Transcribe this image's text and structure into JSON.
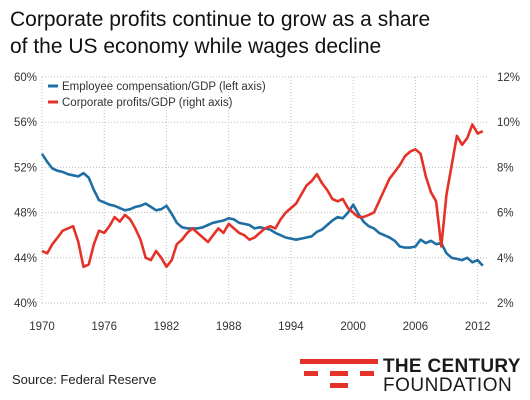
{
  "title": {
    "line1": "Corporate profits continue to grow as a share",
    "line2": "of the US economy while wages decline"
  },
  "source": "Source: Federal Reserve",
  "logo": {
    "line1": "THE CENTURY",
    "line2": "FOUNDATION"
  },
  "colors": {
    "compensation": "#1f6fa3",
    "profits": "#e53228",
    "grid": "#bdbdbd",
    "axis_text": "#333333",
    "logo_red": "#e53228"
  },
  "chart_data": {
    "type": "line",
    "title": "Corporate profits continue to grow as a share of the US economy while wages decline",
    "legend_position": "top-left",
    "grid": true,
    "xlim": [
      1970,
      2013
    ],
    "x_ticks": [
      1970,
      1976,
      1982,
      1988,
      1994,
      2000,
      2006,
      2012
    ],
    "y_left": {
      "lim": [
        40,
        60
      ],
      "ticks": [
        "40%",
        "44%",
        "48%",
        "52%",
        "56%",
        "60%"
      ]
    },
    "y_right": {
      "lim": [
        2,
        12
      ],
      "ticks": [
        "2%",
        "4%",
        "6%",
        "8%",
        "10%",
        "12%"
      ]
    },
    "series": [
      {
        "name": "Employee compensation/GDP (left axis)",
        "axis": "left",
        "x": [
          1970,
          1970.5,
          1971,
          1971.5,
          1972,
          1972.5,
          1973,
          1973.5,
          1974,
          1974.5,
          1975,
          1975.5,
          1976,
          1976.5,
          1977,
          1977.5,
          1978,
          1978.5,
          1979,
          1979.5,
          1980,
          1980.5,
          1981,
          1981.5,
          1982,
          1982.5,
          1983,
          1983.5,
          1984,
          1984.5,
          1985,
          1985.5,
          1986,
          1986.5,
          1987,
          1987.5,
          1988,
          1988.5,
          1989,
          1989.5,
          1990,
          1990.5,
          1991,
          1991.5,
          1992,
          1992.5,
          1993,
          1993.5,
          1994,
          1994.5,
          1995,
          1995.5,
          1996,
          1996.5,
          1997,
          1997.5,
          1998,
          1998.5,
          1999,
          1999.5,
          2000,
          2000.5,
          2001,
          2001.5,
          2002,
          2002.5,
          2003,
          2003.5,
          2004,
          2004.5,
          2005,
          2005.5,
          2006,
          2006.5,
          2007,
          2007.5,
          2008,
          2008.5,
          2009,
          2009.5,
          2010,
          2010.5,
          2011,
          2011.5,
          2012,
          2012.5
        ],
        "values": [
          53.2,
          52.5,
          51.9,
          51.7,
          51.6,
          51.4,
          51.3,
          51.2,
          51.5,
          51.1,
          50.0,
          49.1,
          48.9,
          48.7,
          48.6,
          48.4,
          48.2,
          48.3,
          48.5,
          48.6,
          48.8,
          48.5,
          48.2,
          48.3,
          48.6,
          47.9,
          47.1,
          46.7,
          46.6,
          46.6,
          46.6,
          46.7,
          46.9,
          47.1,
          47.2,
          47.3,
          47.5,
          47.4,
          47.1,
          47.0,
          46.9,
          46.6,
          46.7,
          46.6,
          46.5,
          46.2,
          46.0,
          45.8,
          45.7,
          45.6,
          45.7,
          45.8,
          45.9,
          46.3,
          46.5,
          46.9,
          47.3,
          47.6,
          47.5,
          48.0,
          48.7,
          47.9,
          47.2,
          46.8,
          46.6,
          46.2,
          46.0,
          45.8,
          45.5,
          45.0,
          44.9,
          44.9,
          45.0,
          45.6,
          45.3,
          45.5,
          45.2,
          45.3,
          44.4,
          44.0,
          43.9,
          43.8,
          44.0,
          43.6,
          43.8,
          43.3
        ]
      },
      {
        "name": "Corporate profits/GDP (right axis)",
        "axis": "right",
        "x": [
          1970,
          1970.5,
          1971,
          1971.5,
          1972,
          1972.5,
          1973,
          1973.5,
          1974,
          1974.5,
          1975,
          1975.5,
          1976,
          1976.5,
          1977,
          1977.5,
          1978,
          1978.5,
          1979,
          1979.5,
          1980,
          1980.5,
          1981,
          1981.5,
          1982,
          1982.5,
          1983,
          1983.5,
          1984,
          1984.5,
          1985,
          1985.5,
          1986,
          1986.5,
          1987,
          1987.5,
          1988,
          1988.5,
          1989,
          1989.5,
          1990,
          1990.5,
          1991,
          1991.5,
          1992,
          1992.5,
          1993,
          1993.5,
          1994,
          1994.5,
          1995,
          1995.5,
          1996,
          1996.5,
          1997,
          1997.5,
          1998,
          1998.5,
          1999,
          1999.5,
          2000,
          2000.5,
          2001,
          2001.5,
          2002,
          2002.5,
          2003,
          2003.5,
          2004,
          2004.5,
          2005,
          2005.5,
          2006,
          2006.5,
          2007,
          2007.5,
          2008,
          2008.5,
          2009,
          2009.5,
          2010,
          2010.5,
          2011,
          2011.5,
          2012,
          2012.5
        ],
        "values": [
          4.3,
          4.2,
          4.6,
          4.9,
          5.2,
          5.3,
          5.4,
          4.7,
          3.6,
          3.7,
          4.6,
          5.2,
          5.1,
          5.4,
          5.8,
          5.6,
          5.9,
          5.7,
          5.3,
          4.8,
          4.0,
          3.9,
          4.3,
          4.0,
          3.6,
          3.9,
          4.6,
          4.8,
          5.1,
          5.3,
          5.1,
          4.9,
          4.7,
          5.0,
          5.3,
          5.1,
          5.5,
          5.3,
          5.1,
          5.0,
          4.8,
          4.9,
          5.1,
          5.3,
          5.4,
          5.3,
          5.7,
          6.0,
          6.2,
          6.4,
          6.8,
          7.2,
          7.4,
          7.7,
          7.3,
          7.0,
          6.6,
          6.5,
          6.6,
          6.2,
          6.0,
          5.8,
          5.8,
          5.9,
          6.0,
          6.5,
          7.0,
          7.5,
          7.8,
          8.1,
          8.5,
          8.7,
          8.8,
          8.6,
          7.6,
          6.9,
          6.5,
          4.5,
          6.8,
          8.1,
          9.4,
          9.0,
          9.3,
          9.9,
          9.5,
          9.6
        ]
      }
    ]
  }
}
